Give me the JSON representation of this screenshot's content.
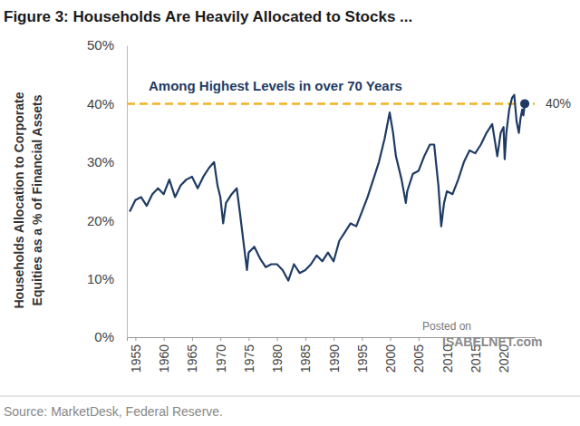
{
  "chart_data": {
    "type": "line",
    "title": "Figure 3: Households Are Heavily Allocated to Stocks ...",
    "y_label": [
      "Households Allocation to Corporate",
      "Equities as a % of Financial Assets"
    ],
    "source": "Source: MarketDesk, Federal Reserve.",
    "watermark": [
      "Posted on",
      "ISABELNET.com"
    ],
    "annotations": [
      {
        "text": "Among Highest Levels in over 70 Years",
        "y": 40,
        "label": "40%"
      }
    ],
    "x": [
      1954,
      1955,
      1956,
      1957,
      1958,
      1959,
      1960,
      1961,
      1962,
      1963,
      1964,
      1965,
      1966,
      1967,
      1968,
      1968.9,
      1969.5,
      1970,
      1970.5,
      1971,
      1972,
      1972.9,
      1973.5,
      1974,
      1974.7,
      1975,
      1976,
      1977,
      1978,
      1979,
      1980,
      1981,
      1982,
      1983,
      1984,
      1985,
      1986,
      1987,
      1988,
      1989,
      1990,
      1991,
      1992,
      1993,
      1994,
      1995,
      1996,
      1997,
      1998,
      1999,
      1999.9,
      2000.5,
      2001,
      2002,
      2002.75,
      2003,
      2004,
      2005,
      2006,
      2007,
      2007.75,
      2008.5,
      2009,
      2009.5,
      2010,
      2011,
      2012,
      2013,
      2014,
      2015,
      2016,
      2017,
      2018,
      2018.9,
      2019.5,
      2020,
      2020.2,
      2020.5,
      2021,
      2021.5,
      2021.9,
      2022.3,
      2022.7,
      2023,
      2023.3,
      2023.5,
      2023.75
    ],
    "series": [
      {
        "name": "Households Allocation to Corporate Equities",
        "color": "#1f3b64",
        "marker": "end",
        "values": [
          21.5,
          23.5,
          24,
          22.5,
          24.5,
          25.5,
          24.5,
          27,
          24,
          26,
          27,
          27.5,
          25.5,
          27.5,
          29,
          30,
          26,
          24,
          19.5,
          23,
          24.5,
          25.5,
          21,
          17,
          11.5,
          14.5,
          15.5,
          13.5,
          12,
          12.5,
          12.5,
          11.5,
          9.7,
          12.5,
          11,
          11.5,
          12.5,
          14,
          13,
          14.5,
          13,
          16.5,
          18,
          19.5,
          19,
          21.5,
          24,
          27,
          30,
          34,
          38.5,
          35,
          31,
          27,
          23,
          25,
          28,
          28.5,
          31,
          33,
          33,
          26,
          19,
          23,
          25,
          24.5,
          27,
          30,
          32,
          31.5,
          33,
          35,
          36.5,
          31,
          35,
          36,
          30.5,
          35,
          39,
          41,
          41.5,
          37,
          35,
          37.5,
          39,
          38,
          40
        ]
      }
    ],
    "xlim": [
      1953.5,
      2025.5
    ],
    "xticks": [
      1955,
      1960,
      1965,
      1970,
      1975,
      1980,
      1985,
      1990,
      1995,
      2000,
      2005,
      2010,
      2015,
      2020
    ],
    "ylim": [
      0,
      50
    ],
    "yticks": [
      {
        "value": 0,
        "label": "0%"
      },
      {
        "value": 10,
        "label": "10%"
      },
      {
        "value": 20,
        "label": "20%"
      },
      {
        "value": 30,
        "label": "30%"
      },
      {
        "value": 40,
        "label": "40%"
      },
      {
        "value": 50,
        "label": "50%"
      }
    ],
    "grid": false
  }
}
